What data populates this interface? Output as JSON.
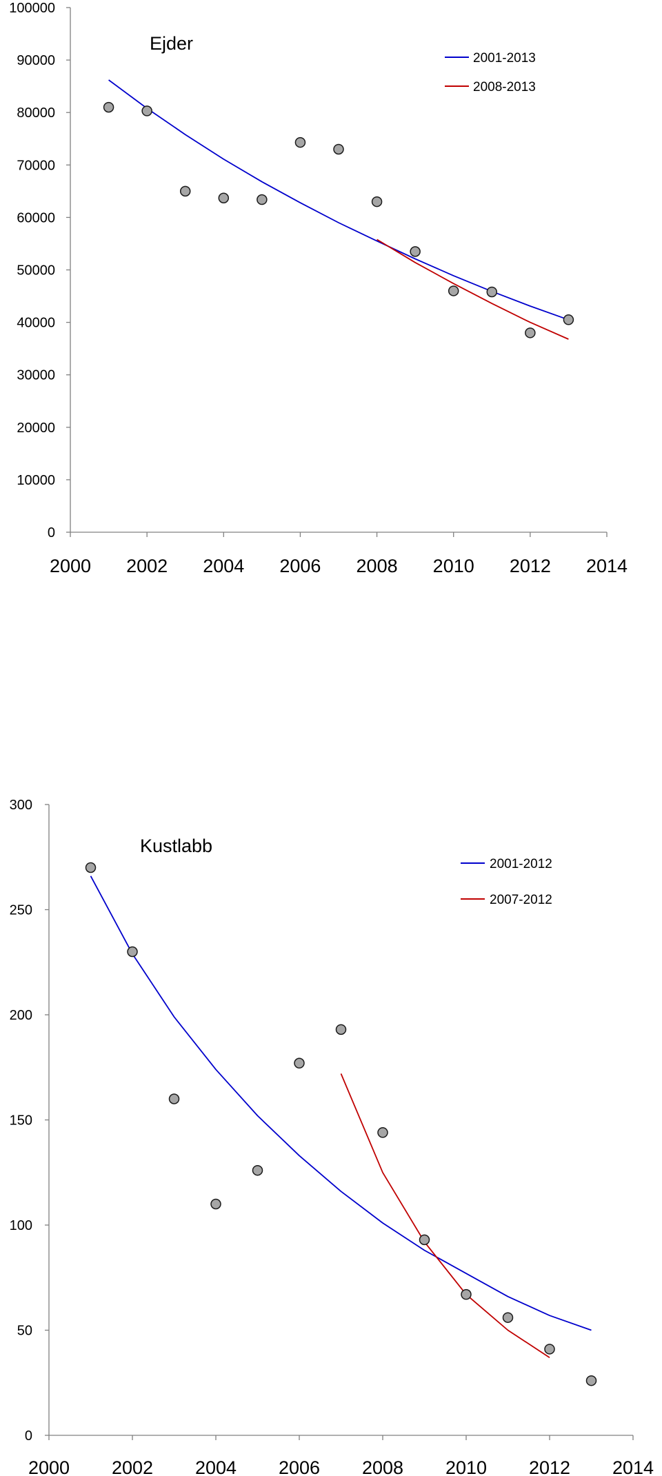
{
  "chart_data": [
    {
      "type": "scatter",
      "title": "Ejder",
      "xlabel": "",
      "ylabel": "",
      "xlim": [
        2000,
        2014
      ],
      "ylim": [
        0,
        100000
      ],
      "x_ticks": [
        "2000",
        "2002",
        "2004",
        "2006",
        "2008",
        "2010",
        "2012",
        "2014"
      ],
      "y_ticks": [
        "0",
        "10000",
        "20000",
        "30000",
        "40000",
        "50000",
        "60000",
        "70000",
        "80000",
        "90000",
        "100000"
      ],
      "grid": false,
      "legend_position": "top-right",
      "points": {
        "x": [
          2001,
          2002,
          2003,
          2004,
          2005,
          2006,
          2007,
          2008,
          2009,
          2010,
          2011,
          2012,
          2013
        ],
        "y": [
          81000,
          80300,
          65000,
          63700,
          63400,
          74300,
          73000,
          63000,
          53500,
          46000,
          45800,
          38000,
          40500
        ],
        "color": "#a6a6a6"
      },
      "series": [
        {
          "name": "2001-2013",
          "color": "#0000cc",
          "x": [
            2001,
            2002,
            2003,
            2004,
            2005,
            2006,
            2007,
            2008,
            2009,
            2010,
            2011,
            2012,
            2013
          ],
          "y": [
            86200,
            80800,
            75800,
            71100,
            66800,
            62800,
            59000,
            55500,
            52100,
            48900,
            45900,
            43100,
            40500
          ]
        },
        {
          "name": "2008-2013",
          "color": "#c00000",
          "x": [
            2008,
            2009,
            2010,
            2011,
            2012,
            2013
          ],
          "y": [
            55800,
            51400,
            47400,
            43600,
            40000,
            36800
          ]
        }
      ]
    },
    {
      "type": "scatter",
      "title": "Kustlabb",
      "xlabel": "",
      "ylabel": "",
      "xlim": [
        2000,
        2014
      ],
      "ylim": [
        0,
        300
      ],
      "x_ticks": [
        "2000",
        "2002",
        "2004",
        "2006",
        "2008",
        "2010",
        "2012",
        "2014"
      ],
      "y_ticks": [
        "0",
        "50",
        "100",
        "150",
        "200",
        "250",
        "300"
      ],
      "grid": false,
      "legend_position": "top-right",
      "points": {
        "x": [
          2001,
          2002,
          2003,
          2004,
          2005,
          2006,
          2007,
          2008,
          2009,
          2010,
          2011,
          2012,
          2013
        ],
        "y": [
          270,
          230,
          160,
          110,
          126,
          177,
          193,
          144,
          93,
          67,
          56,
          41,
          26
        ],
        "color": "#a6a6a6"
      },
      "series": [
        {
          "name": "2001-2012",
          "color": "#0000cc",
          "x": [
            2001,
            2002,
            2003,
            2004,
            2005,
            2006,
            2007,
            2008,
            2009,
            2010,
            2011,
            2012,
            2013
          ],
          "y": [
            266,
            229,
            199,
            174,
            152,
            133,
            116,
            101,
            88,
            77,
            66,
            57,
            50
          ]
        },
        {
          "name": "2007-2012",
          "color": "#c00000",
          "x": [
            2007,
            2008,
            2009,
            2010,
            2011,
            2012
          ],
          "y": [
            172,
            125,
            92,
            67,
            50,
            37
          ]
        }
      ]
    }
  ]
}
